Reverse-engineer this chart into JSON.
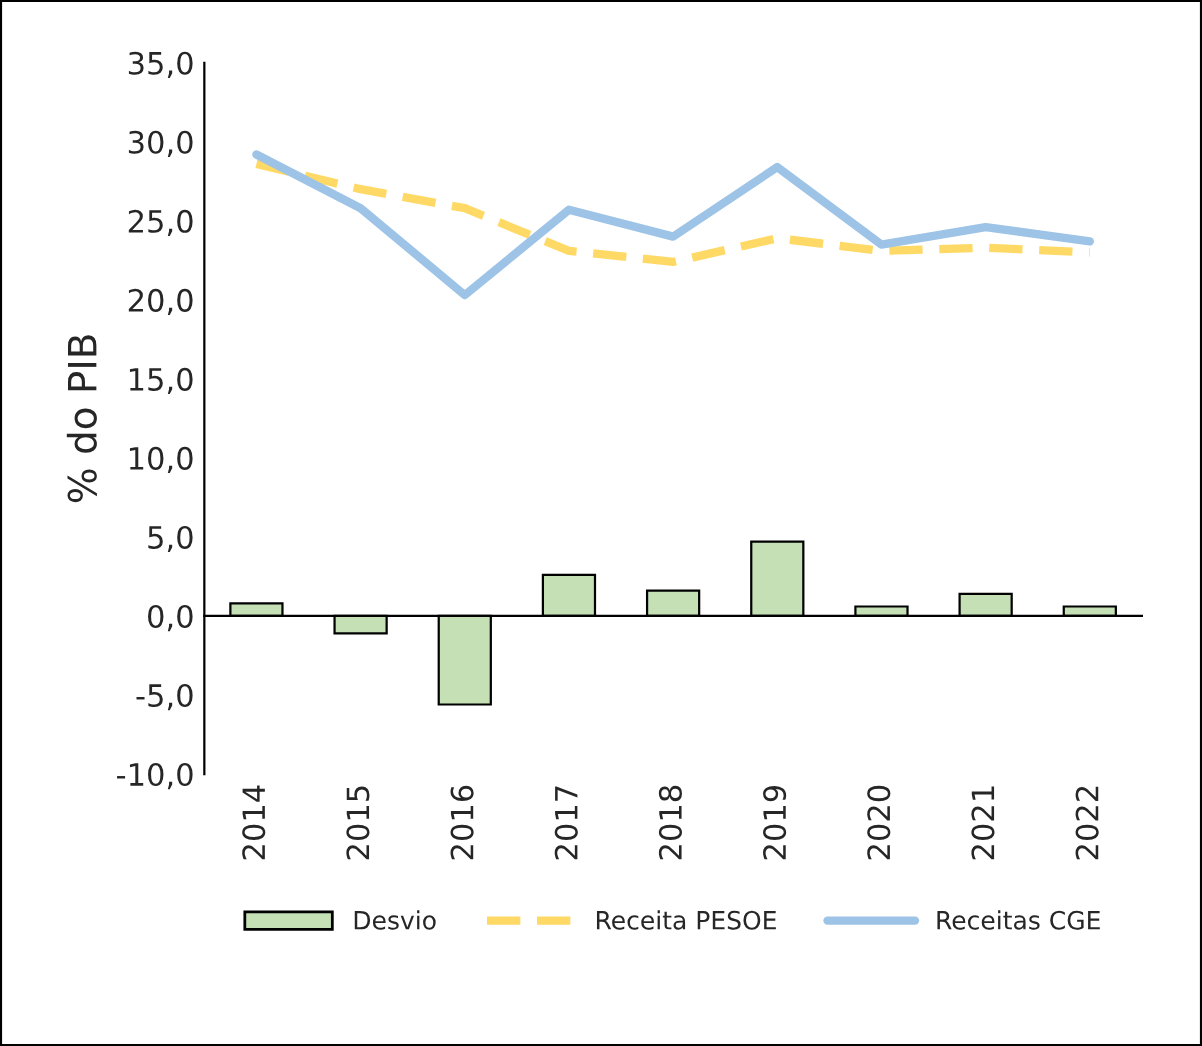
{
  "chart_data": {
    "type": "bar",
    "ylabel": "% do PIB",
    "categories": [
      "2014",
      "2015",
      "2016",
      "2017",
      "2018",
      "2019",
      "2020",
      "2021",
      "2022"
    ],
    "series": [
      {
        "name": "Desvio",
        "color": "#c5e0b4",
        "values": [
          0.8,
          -1.1,
          -5.6,
          2.6,
          1.6,
          4.7,
          0.6,
          1.4,
          0.6
        ]
      },
      {
        "name": "Receita PESOE",
        "type": "line",
        "line_style": "dashed",
        "color": "#ffd966",
        "values": [
          28.6,
          27.0,
          25.8,
          23.1,
          22.4,
          23.9,
          23.1,
          23.3,
          23.0
        ]
      },
      {
        "name": "Receitas CGE",
        "type": "line",
        "line_style": "solid",
        "color": "#9dc3e6",
        "values": [
          29.2,
          25.8,
          20.3,
          25.7,
          24.0,
          28.4,
          23.5,
          24.6,
          23.7
        ]
      }
    ],
    "ylim": [
      -10,
      35
    ],
    "yticks": [
      {
        "value": -10,
        "label": "-10,0"
      },
      {
        "value": -5,
        "label": "-5,0"
      },
      {
        "value": 0,
        "label": "0,0"
      },
      {
        "value": 5,
        "label": "5,0"
      },
      {
        "value": 10,
        "label": "10,0"
      },
      {
        "value": 15,
        "label": "15,0"
      },
      {
        "value": 20,
        "label": "20,0"
      },
      {
        "value": 25,
        "label": "25,0"
      },
      {
        "value": 30,
        "label": "30,0"
      },
      {
        "value": 35,
        "label": "35,0"
      }
    ],
    "legend": "bottom",
    "marker": "none"
  }
}
